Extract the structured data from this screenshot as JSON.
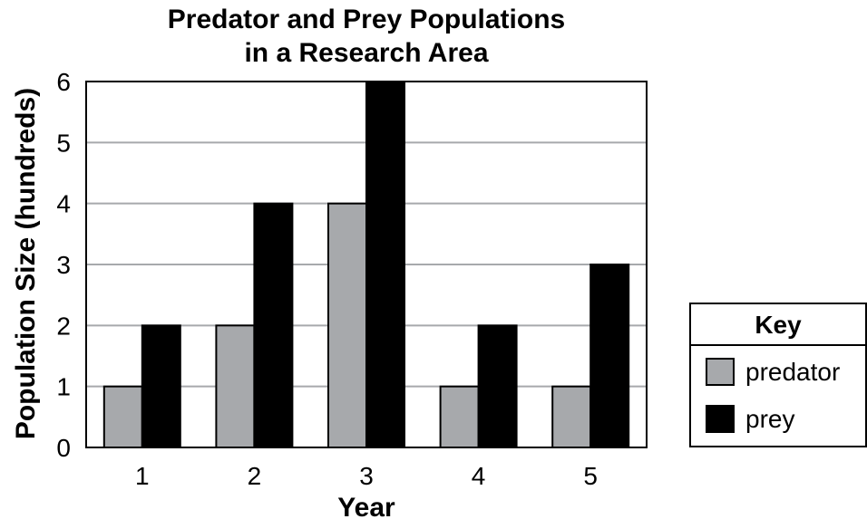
{
  "chart_data": {
    "type": "bar",
    "title_lines": [
      "Predator and Prey Populations",
      "in a Research Area"
    ],
    "xlabel": "Year",
    "ylabel": "Population Size (hundreds)",
    "categories": [
      "1",
      "2",
      "3",
      "4",
      "5"
    ],
    "yticks": [
      "0",
      "1",
      "2",
      "3",
      "4",
      "5",
      "6"
    ],
    "ylim": [
      0,
      6
    ],
    "grid": true,
    "series": [
      {
        "name": "predator",
        "values": [
          1,
          2,
          4,
          1,
          1
        ],
        "color": "#a7a9ac"
      },
      {
        "name": "prey",
        "values": [
          2,
          4,
          6,
          2,
          3
        ],
        "color": "#000000"
      }
    ],
    "legend": {
      "title": "Key",
      "placement": "right"
    }
  }
}
